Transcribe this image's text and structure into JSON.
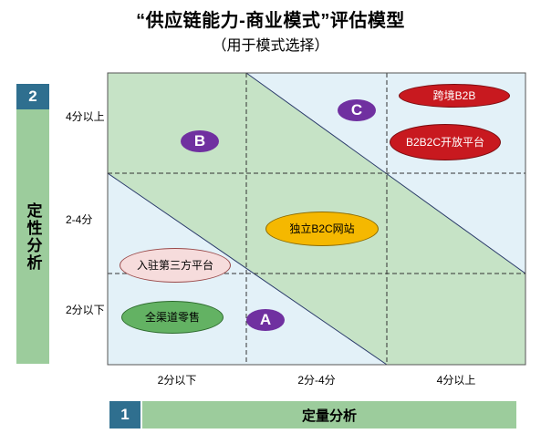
{
  "title": "“供应链能力-商业模式”评估模型",
  "subtitle": "（用于模式选择）",
  "qualitative": {
    "number": "2",
    "label": "定性分析"
  },
  "quantitative": {
    "number": "1",
    "label": "定量分析"
  },
  "y_ticks": [
    "4分以上",
    "2-4分",
    "2分以下"
  ],
  "x_ticks": [
    "2分以下",
    "2分-4分",
    "4分以上"
  ],
  "zones": [
    {
      "id": "A",
      "label": "A"
    },
    {
      "id": "B",
      "label": "B"
    },
    {
      "id": "C",
      "label": "C"
    }
  ],
  "models": [
    {
      "name": "跨境B2B",
      "color": "#c8191f"
    },
    {
      "name": "B2B2C开放平台",
      "color": "#c8191f"
    },
    {
      "name": "独立B2C网站",
      "color": "#f5b800"
    },
    {
      "name": "入驻第三方平台",
      "color": "#f6dcdc"
    },
    {
      "name": "全渠道零售",
      "color": "#63b263"
    }
  ],
  "colors": {
    "zone_green": "#c6e3c6",
    "zone_blue": "#e3f1f8",
    "header_blue": "#2f6f8f",
    "bar_green": "#9ccc9c",
    "marker_purple": "#7030a0"
  }
}
